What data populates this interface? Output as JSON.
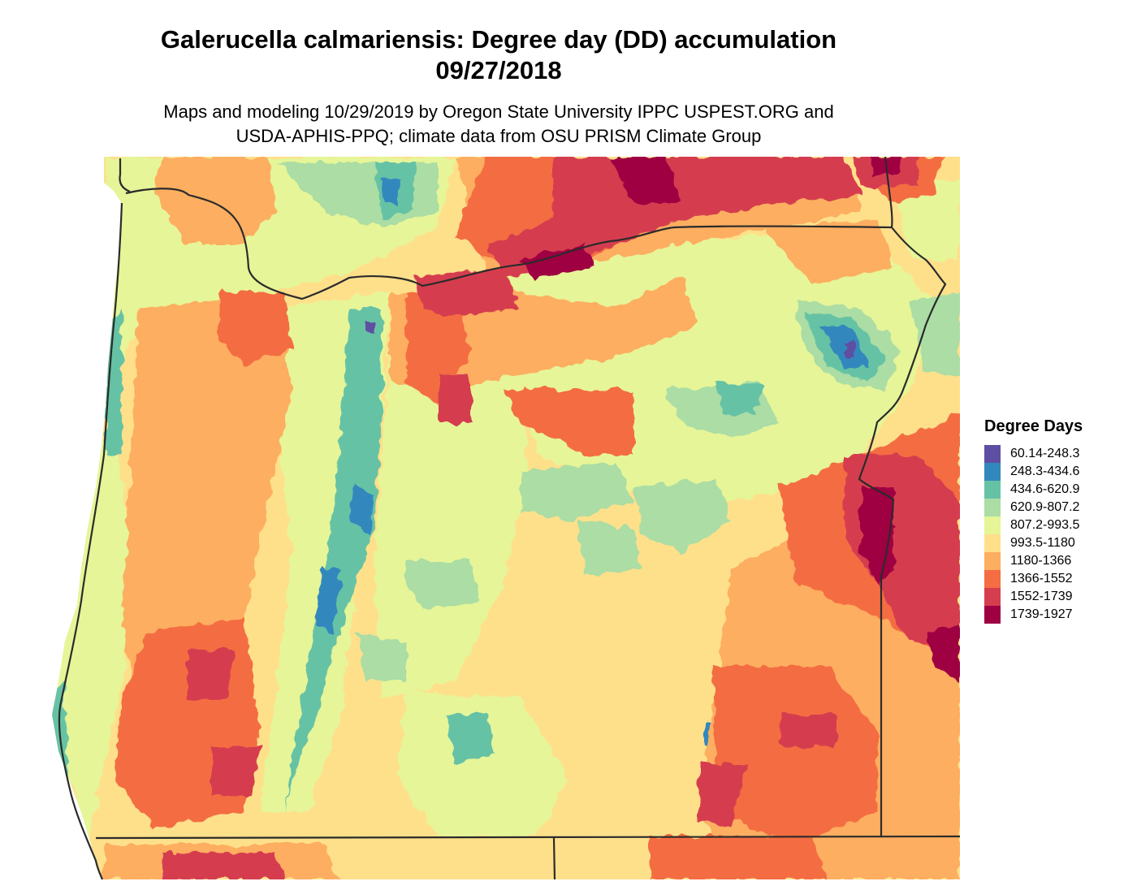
{
  "title_line1": "Galerucella calmariensis: Degree day (DD) accumulation",
  "title_line2": "09/27/2018",
  "subtitle_line1": "Maps and modeling 10/29/2019 by Oregon State University IPPC USPEST.ORG and",
  "subtitle_line2": "USDA-APHIS-PPQ; climate data from OSU PRISM Climate Group",
  "legend": {
    "title": "Degree Days",
    "items": [
      {
        "label": "60.14-248.3",
        "color": "#5e4fa2"
      },
      {
        "label": "248.3-434.6",
        "color": "#3288bd"
      },
      {
        "label": "434.6-620.9",
        "color": "#66c2a5"
      },
      {
        "label": "620.9-807.2",
        "color": "#abdda4"
      },
      {
        "label": "807.2-993.5",
        "color": "#e6f598"
      },
      {
        "label": "993.5-1180",
        "color": "#fee08b"
      },
      {
        "label": "1180-1366",
        "color": "#fdae61"
      },
      {
        "label": "1366-1552",
        "color": "#f46d43"
      },
      {
        "label": "1552-1739",
        "color": "#d53e4f"
      },
      {
        "label": "1739-1927",
        "color": "#9e0142"
      }
    ]
  }
}
